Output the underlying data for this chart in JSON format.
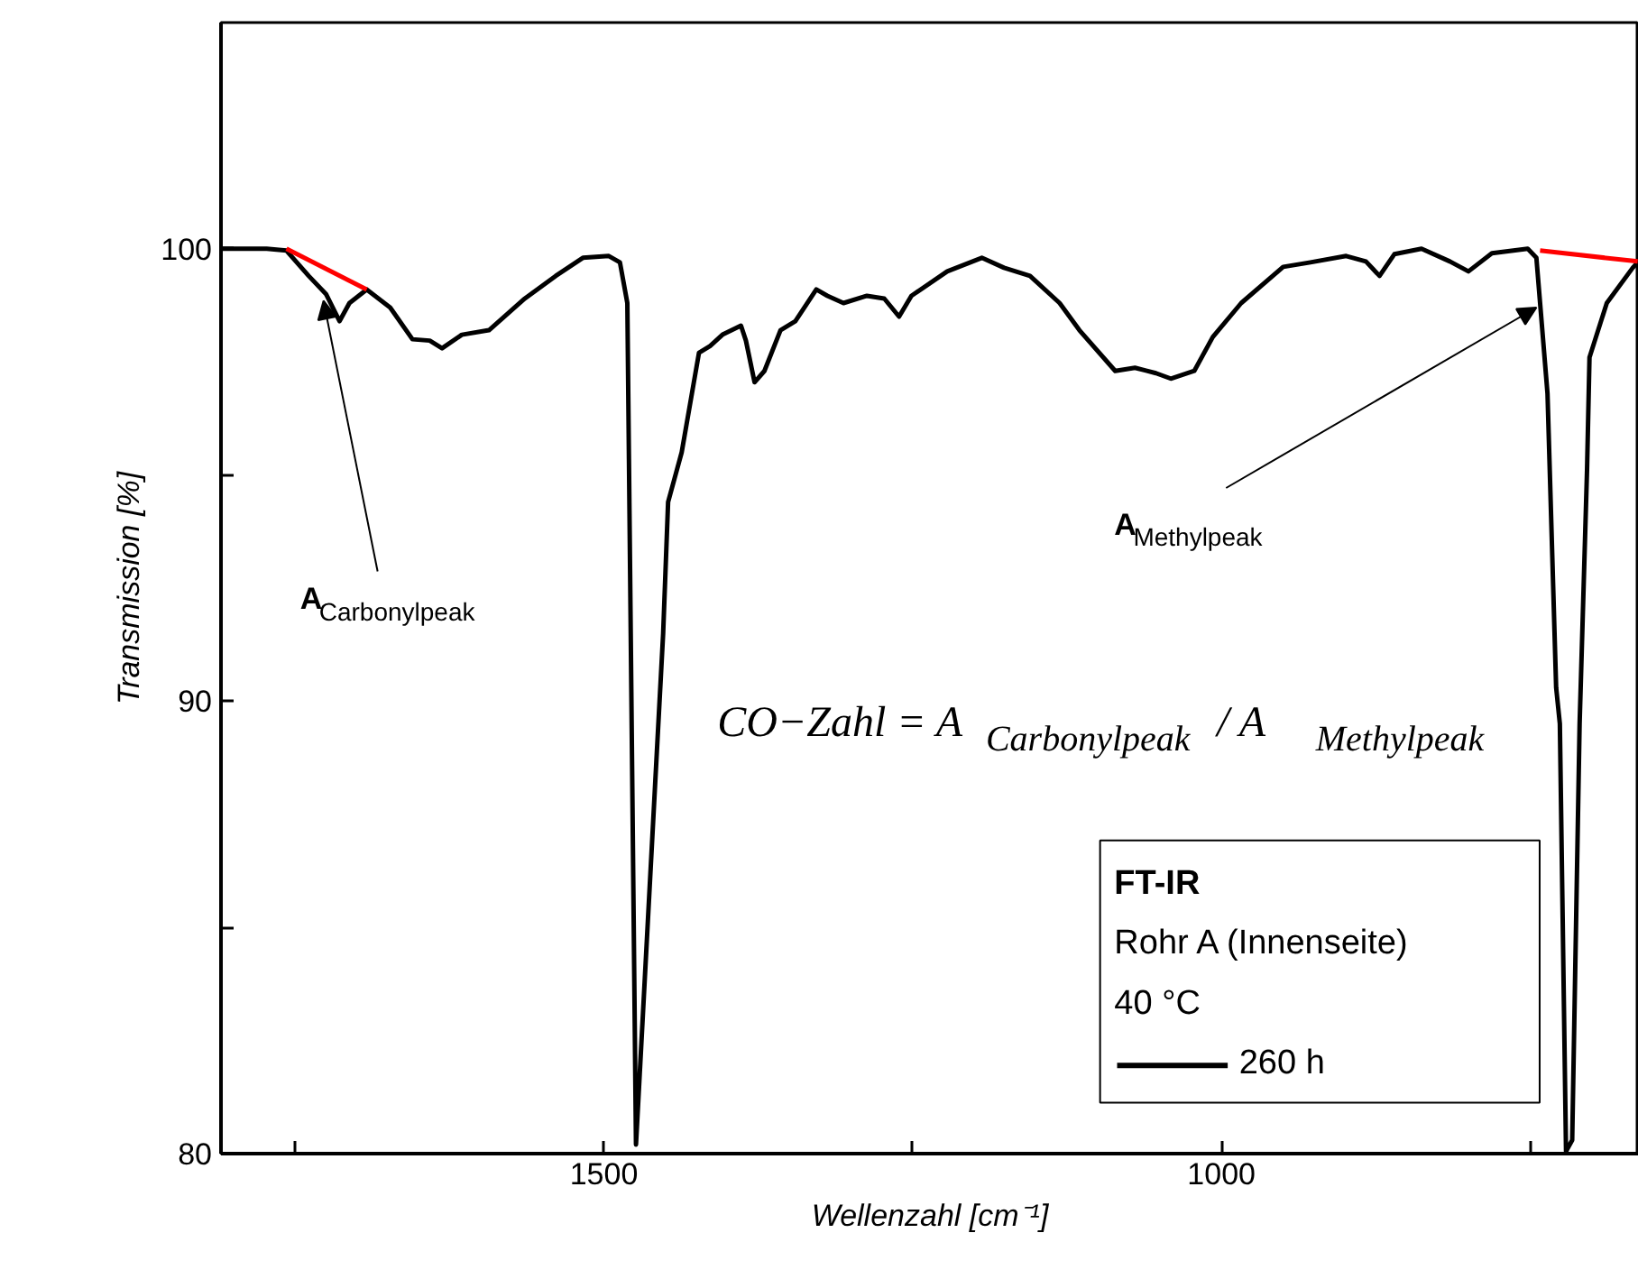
{
  "chart_data": {
    "type": "line",
    "xlabel": "Wellenzahl [cm⁻¹]",
    "ylabel": "Transmission [%]",
    "legend_title": "FT-IR\nRohr A (Innenseite)\n40 °C",
    "legend": "bottom right",
    "grid": false,
    "marker": "none",
    "line_style": "solid",
    "xlim": [
      1810,
      662
    ],
    "ylim": [
      80,
      105
    ],
    "xticks": [
      {
        "value": 1750,
        "label": null
      },
      1500,
      {
        "value": 1250,
        "label": null
      },
      1000,
      {
        "value": 750,
        "label": null
      }
    ],
    "yticks": [
      80,
      {
        "value": 85,
        "label": null
      },
      90,
      {
        "value": 95,
        "label": null
      },
      100
    ],
    "series": [
      {
        "name": "260 h",
        "color": "#000000",
        "x": [
          1809,
          1776,
          1773,
          1757,
          1739,
          1725,
          1714,
          1706,
          1692,
          1673,
          1655,
          1641,
          1631,
          1615,
          1593,
          1564,
          1539,
          1517,
          1496,
          1487,
          1481,
          1474,
          1452,
          1448,
          1437,
          1423,
          1414,
          1404,
          1389,
          1385,
          1378,
          1370,
          1357,
          1345,
          1328,
          1319,
          1306,
          1287,
          1273,
          1261,
          1251,
          1222,
          1194,
          1176,
          1155,
          1131,
          1115,
          1086,
          1070,
          1053,
          1041,
          1022,
          1007,
          984,
          950,
          928,
          899,
          883,
          872,
          860,
          838,
          815,
          800,
          781,
          752,
          745,
          736,
          729,
          726,
          721,
          716,
          710,
          704,
          702,
          688,
          667,
          663
        ],
        "values": [
          100,
          100,
          100,
          99.96,
          99.4,
          99.0,
          98.4,
          98.8,
          99.1,
          98.7,
          98.0,
          97.97,
          97.8,
          98.1,
          98.2,
          98.9,
          99.4,
          99.8,
          99.84,
          99.7,
          98.8,
          80.2,
          91.5,
          94.4,
          95.5,
          97.7,
          97.85,
          98.1,
          98.3,
          97.97,
          97.05,
          97.3,
          98.2,
          98.4,
          99.1,
          98.96,
          98.8,
          98.96,
          98.9,
          98.5,
          98.96,
          99.5,
          99.8,
          99.58,
          99.4,
          98.8,
          98.2,
          97.3,
          97.37,
          97.25,
          97.13,
          97.3,
          98.05,
          98.8,
          99.6,
          99.7,
          99.84,
          99.72,
          99.4,
          99.88,
          100,
          99.72,
          99.5,
          99.9,
          100,
          99.8,
          96.8,
          90.3,
          89.5,
          80.05,
          80.3,
          89.5,
          95.1,
          97.6,
          98.8,
          99.58,
          99.7
        ]
      },
      {
        "color": "#ff0000",
        "x": [
          1757,
          1692
        ],
        "values": [
          100,
          99.1
        ]
      },
      {
        "color": "#ff0000",
        "x": [
          742,
          663
        ],
        "values": [
          99.96,
          99.72
        ]
      }
    ],
    "annotations": [
      {
        "text": "A$_{Carbonylpeak}$",
        "x": 1727,
        "y": 98.85
      },
      {
        "text": "A$_{Methylpeak}$",
        "x": 745,
        "y": 98.7
      },
      "CO−Zahl = A$_{Carbonylpeak}$ / A$_{Methylpeak}$"
    ]
  }
}
